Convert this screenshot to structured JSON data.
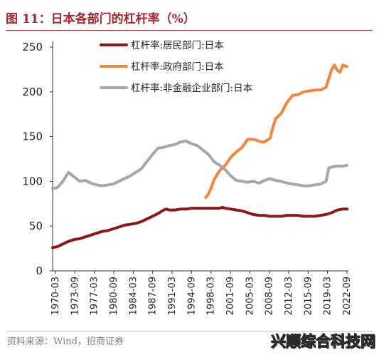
{
  "header": {
    "figure_title": "图 11：日本各部门的杠杆率（%）"
  },
  "footer": {
    "source": "资料来源：Wind，招商证券",
    "watermark": "兴顺综合科技网"
  },
  "chart_data": {
    "type": "line",
    "title": "图 11：日本各部门的杠杆率（%）",
    "xlabel": "",
    "ylabel": "",
    "ylim": [
      0,
      250
    ],
    "yticks": [
      0,
      50,
      100,
      150,
      200,
      250
    ],
    "xlim": [
      1970.167,
      2023.0
    ],
    "x_tick_labels": [
      "1970-03",
      "1973-09",
      "1977-03",
      "1980-09",
      "1984-03",
      "1987-09",
      "1991-03",
      "1994-09",
      "1998-03",
      "2001-09",
      "2005-03",
      "2008-09",
      "2012-03",
      "2015-09",
      "2019-03",
      "2022-09"
    ],
    "grid": false,
    "legend_position": "top-right",
    "series": [
      {
        "name": "杠杆率:居民部门:日本",
        "color": "#8b1a1a",
        "x": [
          1970.17,
          1971,
          1972,
          1973,
          1974,
          1975,
          1976,
          1977,
          1978,
          1979,
          1980,
          1981,
          1982,
          1983,
          1984,
          1985,
          1986,
          1987,
          1988,
          1989,
          1990,
          1990.5,
          1991,
          1992,
          1993,
          1994,
          1995,
          1996,
          1997,
          1998,
          1999,
          2000,
          2000.5,
          2001,
          2002,
          2003,
          2004,
          2005,
          2006,
          2007,
          2008,
          2009,
          2010,
          2011,
          2012,
          2013,
          2014,
          2015,
          2016,
          2017,
          2018,
          2019,
          2020,
          2021,
          2022,
          2022.75
        ],
        "y": [
          26,
          27,
          30,
          33,
          35,
          36,
          38,
          40,
          42,
          44,
          45,
          47,
          49,
          51,
          52,
          53,
          55,
          58,
          61,
          64,
          68,
          69,
          68,
          68,
          69,
          69,
          70,
          70,
          70,
          70,
          70,
          70,
          71,
          70,
          69,
          68,
          67,
          65,
          63,
          62,
          62,
          61,
          61,
          61,
          62,
          62,
          62,
          61,
          61,
          61,
          62,
          63,
          65,
          68,
          69,
          69
        ]
      },
      {
        "name": "杠杆率:政府部门:日本",
        "color": "#f0873a",
        "x": [
          1997.5,
          1998,
          1998.5,
          1999,
          2000,
          2001,
          2002,
          2003,
          2004,
          2005,
          2006,
          2007,
          2007.5,
          2008,
          2009,
          2009.5,
          2010,
          2011,
          2012,
          2013,
          2014,
          2015,
          2016,
          2017,
          2018,
          2019,
          2020,
          2020.5,
          2021,
          2021.5,
          2022,
          2022.75
        ],
        "y": [
          82,
          86,
          93,
          102,
          112,
          118,
          127,
          133,
          138,
          147,
          147,
          145,
          144,
          144,
          148,
          160,
          170,
          176,
          188,
          196,
          197,
          200,
          201,
          202,
          202,
          205,
          225,
          230,
          224,
          222,
          230,
          228
        ]
      },
      {
        "name": "杠杆率:非金融企业部门:日本",
        "color": "#a6a6a6",
        "x": [
          1970.17,
          1971,
          1972,
          1973,
          1974,
          1975,
          1976,
          1977,
          1978,
          1979,
          1980,
          1981,
          1982,
          1983,
          1984,
          1985,
          1986,
          1987,
          1988,
          1989,
          1990,
          1991,
          1992,
          1993,
          1994,
          1995,
          1996,
          1997,
          1998,
          1999,
          2000,
          2001,
          2002,
          2003,
          2004,
          2005,
          2006,
          2007,
          2008,
          2009,
          2010,
          2011,
          2012,
          2013,
          2014,
          2015,
          2016,
          2017,
          2018,
          2019,
          2019.5,
          2020,
          2021,
          2022,
          2022.75
        ],
        "y": [
          92,
          93,
          100,
          110,
          105,
          100,
          101,
          98,
          96,
          95,
          96,
          97,
          100,
          103,
          106,
          110,
          114,
          122,
          130,
          137,
          138,
          140,
          141,
          144,
          145,
          142,
          140,
          135,
          130,
          122,
          118,
          113,
          106,
          101,
          100,
          99,
          100,
          98,
          101,
          103,
          101,
          100,
          98,
          97,
          96,
          95,
          95,
          96,
          97,
          100,
          115,
          116,
          117,
          117,
          118
        ]
      }
    ]
  }
}
